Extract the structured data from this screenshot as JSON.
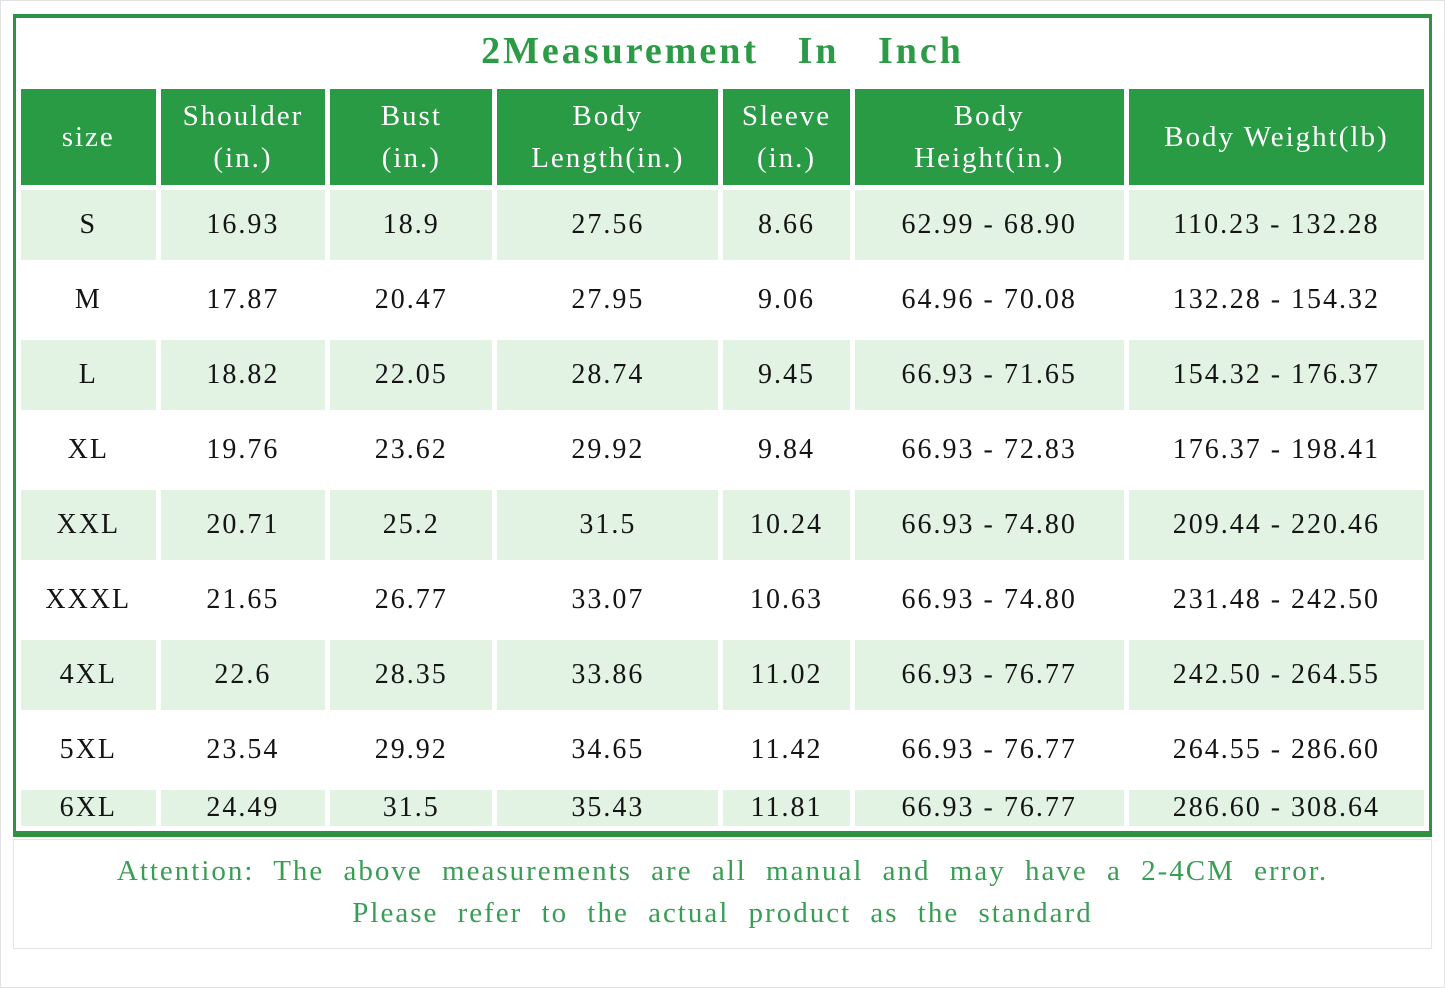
{
  "title": "2Measurement In Inch",
  "colors": {
    "header_green": "#2a9b45",
    "row_light_green": "#e2f2e3",
    "frame_border_green": "#2e9243",
    "title_text_green": "#2b9b45",
    "note_text_green": "#3a9d55",
    "cell_text": "#141414"
  },
  "table": {
    "header_lines": [
      [
        "size"
      ],
      [
        "Shoulder",
        "(in.)"
      ],
      [
        "Bust",
        "(in.)"
      ],
      [
        "Body",
        "Length(in.)"
      ],
      [
        "Sleeve",
        "(in.)"
      ],
      [
        "Body",
        "Height(in.)"
      ],
      [
        "Body Weight(lb)"
      ]
    ]
  },
  "footer": {
    "line1": "Attention: The above measurements are all manual and may have a 2-4CM error.",
    "line2": "Please refer to the actual product as the standard"
  },
  "chart_data": {
    "type": "table",
    "title": "2Measurement In Inch",
    "columns": [
      "size",
      "Shoulder (in.)",
      "Bust (in.)",
      "Body Length(in.)",
      "Sleeve (in.)",
      "Body Height(in.)",
      "Body Weight(lb)"
    ],
    "rows": [
      [
        "S",
        "16.93",
        "18.9",
        "27.56",
        "8.66",
        "62.99 - 68.90",
        "110.23 - 132.28"
      ],
      [
        "M",
        "17.87",
        "20.47",
        "27.95",
        "9.06",
        "64.96 - 70.08",
        "132.28 - 154.32"
      ],
      [
        "L",
        "18.82",
        "22.05",
        "28.74",
        "9.45",
        "66.93 - 71.65",
        "154.32 - 176.37"
      ],
      [
        "XL",
        "19.76",
        "23.62",
        "29.92",
        "9.84",
        "66.93 - 72.83",
        "176.37 - 198.41"
      ],
      [
        "XXL",
        "20.71",
        "25.2",
        "31.5",
        "10.24",
        "66.93 - 74.80",
        "209.44 - 220.46"
      ],
      [
        "XXXL",
        "21.65",
        "26.77",
        "33.07",
        "10.63",
        "66.93 - 74.80",
        "231.48 - 242.50"
      ],
      [
        "4XL",
        "22.6",
        "28.35",
        "33.86",
        "11.02",
        "66.93 - 76.77",
        "242.50 - 264.55"
      ],
      [
        "5XL",
        "23.54",
        "29.92",
        "34.65",
        "11.42",
        "66.93 - 76.77",
        "264.55 - 286.60"
      ],
      [
        "6XL",
        "24.49",
        "31.5",
        "35.43",
        "11.81",
        "66.93 - 76.77",
        "286.60 - 308.64"
      ]
    ],
    "note": "Attention: The above measurements are all manual and may have a 2-4CM error. Please refer to the actual product as the standard"
  }
}
